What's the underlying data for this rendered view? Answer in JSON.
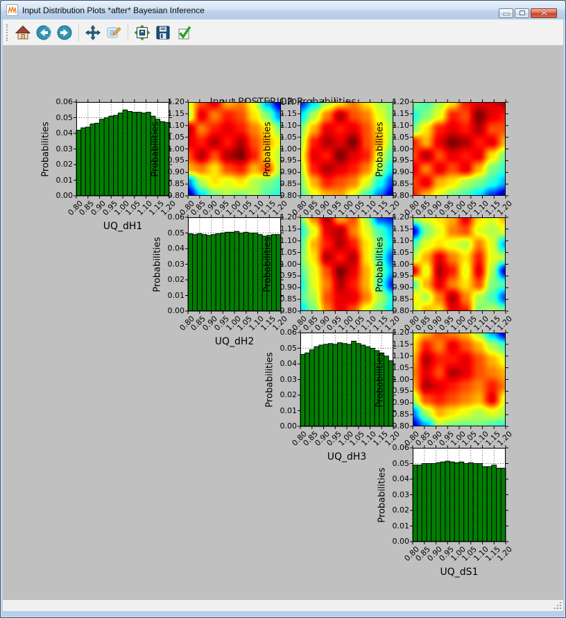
{
  "window": {
    "title": "Input Distribution Plots *after* Bayesian Inference",
    "buttons": [
      {
        "name": "minimize-button",
        "icon": "minimize-icon"
      },
      {
        "name": "maximize-button",
        "icon": "maximize-icon"
      },
      {
        "name": "close-button",
        "icon": "close-icon"
      }
    ]
  },
  "toolbar": {
    "buttons": [
      {
        "name": "home-button",
        "icon": "home-icon",
        "group": 0
      },
      {
        "name": "back-button",
        "icon": "back-icon",
        "group": 0
      },
      {
        "name": "forward-button",
        "icon": "forward-icon",
        "group": 0
      },
      {
        "name": "pan-button",
        "icon": "pan-icon",
        "group": 1
      },
      {
        "name": "customize-button",
        "icon": "customize-icon",
        "group": 1
      },
      {
        "name": "configure-subplots-button",
        "icon": "subplots-icon",
        "group": 2
      },
      {
        "name": "save-button",
        "icon": "save-icon",
        "group": 2
      },
      {
        "name": "apply-button",
        "icon": "checkmark-icon",
        "group": 2
      }
    ]
  },
  "figure": {
    "title": "Input POSTERIOR Probabilities",
    "canvas_bg": "#c0c0c0",
    "axes_bg": "#ffffff",
    "bar_color": "#008000",
    "bar_edge": "#000000"
  },
  "axes_defaults": {
    "x_tick_labels": [
      "0.80",
      "0.85",
      "0.90",
      "0.95",
      "1.00",
      "1.05",
      "1.10",
      "1.15",
      "1.20"
    ],
    "hist_y_tick_labels": [
      "0.00",
      "0.01",
      "0.02",
      "0.03",
      "0.04",
      "0.05",
      "0.06"
    ],
    "heat_y_tick_labels": [
      "0.80",
      "0.85",
      "0.90",
      "0.95",
      "1.00",
      "1.05",
      "1.10",
      "1.15",
      "1.20"
    ],
    "ylabel": "Probabilities",
    "grid": true
  },
  "chart_data": [
    {
      "type": "bar",
      "id": "hist-UQ_dH1",
      "row": 0,
      "col": 0,
      "xlabel": "UQ_dH1",
      "ylabel": "Probabilities",
      "xlim": [
        0.8,
        1.2
      ],
      "ylim": [
        0.0,
        0.06
      ],
      "bin_width": 0.02,
      "values": [
        0.042,
        0.0435,
        0.044,
        0.046,
        0.0465,
        0.049,
        0.05,
        0.051,
        0.0515,
        0.053,
        0.055,
        0.054,
        0.0535,
        0.0535,
        0.053,
        0.0535,
        0.051,
        0.049,
        0.0475,
        0.047
      ]
    },
    {
      "type": "bar",
      "id": "hist-UQ_dH2",
      "row": 1,
      "col": 1,
      "xlabel": "UQ_dH2",
      "ylabel": "Probabilities",
      "xlim": [
        0.8,
        1.2
      ],
      "ylim": [
        0.0,
        0.06
      ],
      "bin_width": 0.02,
      "values": [
        0.0495,
        0.049,
        0.0495,
        0.049,
        0.0485,
        0.049,
        0.0495,
        0.05,
        0.0505,
        0.0505,
        0.051,
        0.05,
        0.0505,
        0.05,
        0.05,
        0.049,
        0.048,
        0.0485,
        0.049,
        0.049
      ]
    },
    {
      "type": "bar",
      "id": "hist-UQ_dH3",
      "row": 2,
      "col": 2,
      "xlabel": "UQ_dH3",
      "ylabel": "Probabilities",
      "xlim": [
        0.8,
        1.2
      ],
      "ylim": [
        0.0,
        0.06
      ],
      "bin_width": 0.02,
      "values": [
        0.046,
        0.047,
        0.049,
        0.051,
        0.052,
        0.0525,
        0.053,
        0.0525,
        0.0535,
        0.053,
        0.0525,
        0.0545,
        0.053,
        0.052,
        0.051,
        0.05,
        0.0485,
        0.047,
        0.045,
        0.042
      ]
    },
    {
      "type": "bar",
      "id": "hist-UQ_dS1",
      "row": 3,
      "col": 3,
      "xlabel": "UQ_dS1",
      "ylabel": "Probabilities",
      "xlim": [
        0.8,
        1.2
      ],
      "ylim": [
        0.0,
        0.06
      ],
      "bin_width": 0.02,
      "values": [
        0.049,
        0.049,
        0.05,
        0.05,
        0.05,
        0.0505,
        0.051,
        0.0515,
        0.051,
        0.0505,
        0.051,
        0.05,
        0.0505,
        0.05,
        0.05,
        0.048,
        0.048,
        0.049,
        0.047,
        0.047
      ]
    },
    {
      "type": "heatmap",
      "id": "heat-r0c1",
      "row": 0,
      "col": 1,
      "ylabel": "Probabilities",
      "colormap": "jet",
      "xlim": [
        0.8,
        1.2
      ],
      "ylim": [
        0.8,
        1.2
      ],
      "grid": [
        [
          0.6,
          0.8,
          0.9,
          0.7,
          0.75,
          0.6,
          0.3,
          0.05
        ],
        [
          0.55,
          0.9,
          0.75,
          0.85,
          0.8,
          0.65,
          0.5,
          0.25
        ],
        [
          0.95,
          0.75,
          0.85,
          0.9,
          0.85,
          0.75,
          0.65,
          0.5
        ],
        [
          0.9,
          0.85,
          0.95,
          0.85,
          0.95,
          0.8,
          0.7,
          0.6
        ],
        [
          0.8,
          0.95,
          0.8,
          0.95,
          1.0,
          0.85,
          0.65,
          0.55
        ],
        [
          0.7,
          0.75,
          0.65,
          0.8,
          0.85,
          0.7,
          0.8,
          0.55
        ],
        [
          0.25,
          0.55,
          0.65,
          0.6,
          0.65,
          0.55,
          0.5,
          0.45
        ],
        [
          0.05,
          0.35,
          0.5,
          0.55,
          0.5,
          0.55,
          0.45,
          0.4
        ]
      ]
    },
    {
      "type": "heatmap",
      "id": "heat-r0c2",
      "row": 0,
      "col": 2,
      "ylabel": "Probabilities",
      "colormap": "jet",
      "xlim": [
        0.8,
        1.2
      ],
      "ylim": [
        0.8,
        1.2
      ],
      "grid": [
        [
          0.15,
          0.35,
          0.55,
          0.65,
          0.75,
          0.65,
          0.55,
          0.5
        ],
        [
          0.35,
          0.55,
          0.75,
          0.95,
          0.8,
          0.75,
          0.6,
          0.5
        ],
        [
          0.5,
          0.7,
          0.9,
          0.85,
          0.9,
          0.8,
          0.65,
          0.55
        ],
        [
          0.55,
          0.85,
          0.95,
          0.9,
          1.0,
          0.8,
          0.7,
          0.5
        ],
        [
          0.6,
          0.9,
          0.85,
          1.0,
          0.9,
          0.85,
          0.6,
          0.45
        ],
        [
          0.55,
          0.85,
          0.95,
          0.9,
          0.85,
          0.75,
          0.55,
          0.35
        ],
        [
          0.5,
          0.7,
          0.85,
          0.8,
          0.75,
          0.6,
          0.4,
          0.18
        ],
        [
          0.45,
          0.6,
          0.7,
          0.72,
          0.6,
          0.45,
          0.25,
          0.05
        ]
      ]
    },
    {
      "type": "heatmap",
      "id": "heat-r0c3",
      "row": 0,
      "col": 3,
      "ylabel": "Probabilities",
      "colormap": "jet",
      "xlim": [
        0.8,
        1.2
      ],
      "ylim": [
        0.8,
        1.2
      ],
      "grid": [
        [
          0.5,
          0.45,
          0.55,
          0.65,
          0.85,
          0.9,
          0.9,
          0.95
        ],
        [
          0.4,
          0.5,
          0.6,
          0.85,
          0.8,
          1.0,
          0.9,
          0.85
        ],
        [
          0.5,
          0.65,
          0.85,
          0.9,
          0.85,
          0.95,
          0.8,
          0.8
        ],
        [
          0.85,
          0.7,
          0.9,
          1.0,
          0.95,
          0.85,
          0.9,
          0.7
        ],
        [
          0.8,
          0.95,
          0.8,
          0.9,
          0.85,
          0.9,
          0.65,
          0.5
        ],
        [
          0.9,
          0.75,
          0.9,
          0.8,
          0.9,
          0.7,
          0.5,
          0.42
        ],
        [
          0.8,
          0.9,
          0.7,
          0.65,
          0.55,
          0.5,
          0.42,
          0.3
        ],
        [
          0.85,
          0.7,
          0.6,
          0.5,
          0.45,
          0.35,
          0.18,
          0.05
        ]
      ]
    },
    {
      "type": "heatmap",
      "id": "heat-r1c2",
      "row": 1,
      "col": 2,
      "ylabel": "Probabilities",
      "colormap": "jet",
      "xlim": [
        0.8,
        1.2
      ],
      "ylim": [
        0.8,
        1.2
      ],
      "grid": [
        [
          0.5,
          0.75,
          0.95,
          0.7,
          0.8,
          0.55,
          0.2,
          0.15
        ],
        [
          0.4,
          0.6,
          0.9,
          0.95,
          0.75,
          0.6,
          0.45,
          0.3
        ],
        [
          0.45,
          0.7,
          0.85,
          0.95,
          0.85,
          0.65,
          0.5,
          0.35
        ],
        [
          0.5,
          0.65,
          0.95,
          0.85,
          0.95,
          0.65,
          0.45,
          0.2
        ],
        [
          0.45,
          0.6,
          0.8,
          1.0,
          0.9,
          0.7,
          0.5,
          0.3
        ],
        [
          0.4,
          0.6,
          0.75,
          0.95,
          0.85,
          0.7,
          0.45,
          0.15
        ],
        [
          0.45,
          0.55,
          0.8,
          0.9,
          0.9,
          0.75,
          0.55,
          0.4
        ],
        [
          0.35,
          0.5,
          0.75,
          0.9,
          0.8,
          0.6,
          0.5,
          0.35
        ]
      ]
    },
    {
      "type": "heatmap",
      "id": "heat-r1c3",
      "row": 1,
      "col": 3,
      "ylabel": "Probabilities",
      "colormap": "jet",
      "xlim": [
        0.8,
        1.2
      ],
      "ylim": [
        0.8,
        1.2
      ],
      "grid": [
        [
          0.55,
          0.6,
          0.65,
          0.7,
          0.9,
          0.65,
          0.6,
          0.7
        ],
        [
          0.1,
          0.5,
          0.6,
          0.75,
          0.8,
          0.6,
          0.55,
          0.6
        ],
        [
          0.45,
          0.6,
          0.65,
          0.6,
          0.55,
          0.75,
          0.6,
          0.3
        ],
        [
          0.55,
          0.7,
          0.9,
          0.75,
          0.65,
          0.85,
          0.6,
          0.55
        ],
        [
          0.9,
          0.6,
          0.95,
          0.85,
          0.6,
          0.9,
          0.55,
          0.1
        ],
        [
          0.45,
          0.7,
          0.9,
          0.75,
          0.65,
          0.8,
          0.5,
          0.45
        ],
        [
          0.65,
          0.55,
          0.75,
          0.95,
          0.75,
          0.55,
          0.45,
          0.2
        ],
        [
          0.55,
          0.7,
          0.65,
          0.9,
          0.85,
          0.5,
          0.55,
          0.5
        ]
      ]
    },
    {
      "type": "heatmap",
      "id": "heat-r2c3",
      "row": 2,
      "col": 3,
      "ylabel": "Probabilities",
      "colormap": "jet",
      "xlim": [
        0.8,
        1.2
      ],
      "ylim": [
        0.8,
        1.2
      ],
      "grid": [
        [
          0.6,
          0.7,
          0.8,
          0.75,
          0.7,
          0.55,
          0.3,
          0.08
        ],
        [
          0.65,
          0.85,
          0.75,
          0.9,
          0.8,
          0.7,
          0.55,
          0.45
        ],
        [
          0.7,
          0.95,
          0.85,
          0.85,
          0.9,
          0.8,
          0.7,
          0.6
        ],
        [
          0.75,
          0.9,
          0.8,
          0.95,
          0.9,
          0.8,
          0.75,
          0.7
        ],
        [
          0.7,
          0.95,
          0.9,
          0.85,
          0.8,
          0.75,
          0.85,
          0.75
        ],
        [
          0.55,
          0.8,
          0.85,
          0.8,
          0.75,
          0.7,
          0.9,
          0.6
        ],
        [
          0.25,
          0.55,
          0.7,
          0.65,
          0.6,
          0.55,
          0.6,
          0.55
        ],
        [
          0.08,
          0.3,
          0.55,
          0.5,
          0.48,
          0.5,
          0.45,
          0.42
        ]
      ]
    }
  ]
}
